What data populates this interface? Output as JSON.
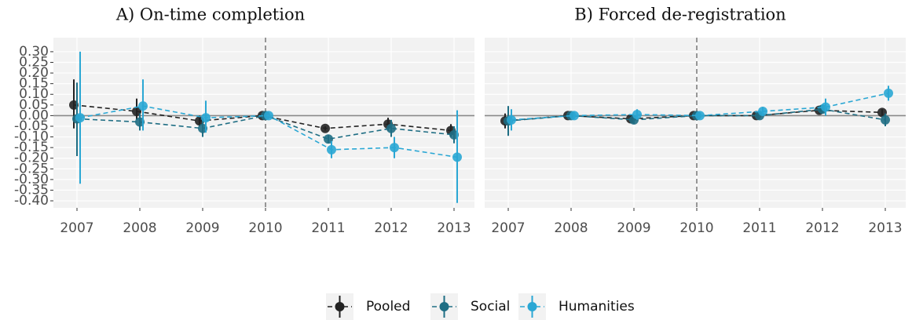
{
  "chart_data": [
    {
      "type": "line",
      "title": "A) On-time completion",
      "x": [
        2007,
        2008,
        2009,
        2010,
        2011,
        2012,
        2013
      ],
      "xlim": [
        2006.625,
        2013.325
      ],
      "xticks": [
        2007,
        2008,
        2009,
        2010,
        2011,
        2012,
        2013
      ],
      "ylim": [
        -0.433,
        0.366
      ],
      "yticks": [
        {
          "value": 0.3,
          "label": "0.30"
        },
        {
          "value": 0.25,
          "label": "0.25"
        },
        {
          "value": 0.2,
          "label": "0.20"
        },
        {
          "value": 0.15,
          "label": "0.15"
        },
        {
          "value": 0.1,
          "label": "0.10"
        },
        {
          "value": 0.05,
          "label": "0.05"
        },
        {
          "value": 0,
          "label": "0.00"
        },
        {
          "value": -0.05,
          "label": "-0.05"
        },
        {
          "value": -0.1,
          "label": "-0.10"
        },
        {
          "value": -0.15,
          "label": "-0.15"
        },
        {
          "value": -0.2,
          "label": "-0.20"
        },
        {
          "value": -0.25,
          "label": "-0.25"
        },
        {
          "value": -0.3,
          "label": "-0.30"
        },
        {
          "value": -0.35,
          "label": "-0.35"
        },
        {
          "value": -0.4,
          "label": "-0.40"
        }
      ],
      "vline": 2010,
      "hline": 0,
      "grid": true,
      "legend": "bottom",
      "series": [
        {
          "name": "Pooled",
          "color": "#222222",
          "values": [
            0.05,
            0.02,
            -0.025,
            0,
            -0.06,
            -0.04,
            -0.07
          ],
          "ci_low": [
            -0.06,
            -0.02,
            -0.05,
            0,
            -0.07,
            -0.07,
            -0.1
          ],
          "ci_high": [
            0.17,
            0.08,
            0,
            0,
            -0.05,
            -0.01,
            -0.04
          ]
        },
        {
          "name": "Social",
          "color": "#1f6e84",
          "values": [
            -0.015,
            -0.03,
            -0.06,
            0,
            -0.11,
            -0.06,
            -0.09
          ],
          "ci_low": [
            -0.19,
            -0.07,
            -0.1,
            0,
            -0.13,
            -0.1,
            -0.13
          ],
          "ci_high": [
            0.155,
            0.01,
            -0.02,
            0,
            -0.09,
            -0.02,
            -0.05
          ]
        },
        {
          "name": "Humanities",
          "color": "#2aa7d4",
          "values": [
            -0.01,
            0.045,
            -0.01,
            0,
            -0.16,
            -0.15,
            -0.195
          ],
          "ci_low": [
            -0.32,
            -0.07,
            -0.08,
            0,
            -0.2,
            -0.2,
            -0.41
          ],
          "ci_high": [
            0.3,
            0.17,
            0.07,
            0,
            -0.12,
            -0.1,
            0.025
          ]
        }
      ]
    },
    {
      "type": "line",
      "title": "B) Forced de-registration",
      "x": [
        2007,
        2008,
        2009,
        2010,
        2011,
        2012,
        2013
      ],
      "xlim": [
        2006.625,
        2013.325
      ],
      "xticks": [
        2007,
        2008,
        2009,
        2010,
        2011,
        2012,
        2013
      ],
      "ylim": [
        -0.433,
        0.366
      ],
      "yticks": [
        0.3,
        0.25,
        0.2,
        0.15,
        0.1,
        0.05,
        0,
        -0.05,
        -0.1,
        -0.15,
        -0.2,
        -0.25,
        -0.3,
        -0.35,
        -0.4
      ],
      "show_ytick_labels": false,
      "vline": 2010,
      "hline": 0,
      "grid": true,
      "series": [
        {
          "color": "#222222",
          "values": [
            -0.025,
            0,
            -0.015,
            0,
            0,
            0.025,
            0.015
          ],
          "ci_low": [
            -0.06,
            -0.01,
            -0.03,
            0,
            -0.01,
            0.01,
            0
          ],
          "ci_high": [
            0.01,
            0.01,
            0,
            0,
            0.01,
            0.04,
            0.03
          ]
        },
        {
          "color": "#1f6e84",
          "values": [
            -0.025,
            0,
            -0.02,
            0,
            0,
            0.03,
            -0.02
          ],
          "ci_low": [
            -0.095,
            -0.01,
            -0.04,
            0,
            -0.01,
            0.01,
            -0.05
          ],
          "ci_high": [
            0.045,
            0.01,
            0,
            0,
            0.01,
            0.05,
            0.01
          ]
        },
        {
          "color": "#2aa7d4",
          "values": [
            -0.02,
            0,
            0.005,
            0,
            0.02,
            0.04,
            0.105
          ],
          "ci_low": [
            -0.07,
            -0.015,
            -0.02,
            0,
            0,
            0,
            0.07
          ],
          "ci_high": [
            0.03,
            0.015,
            0.03,
            0,
            0.04,
            0.08,
            0.14
          ]
        }
      ]
    }
  ]
}
